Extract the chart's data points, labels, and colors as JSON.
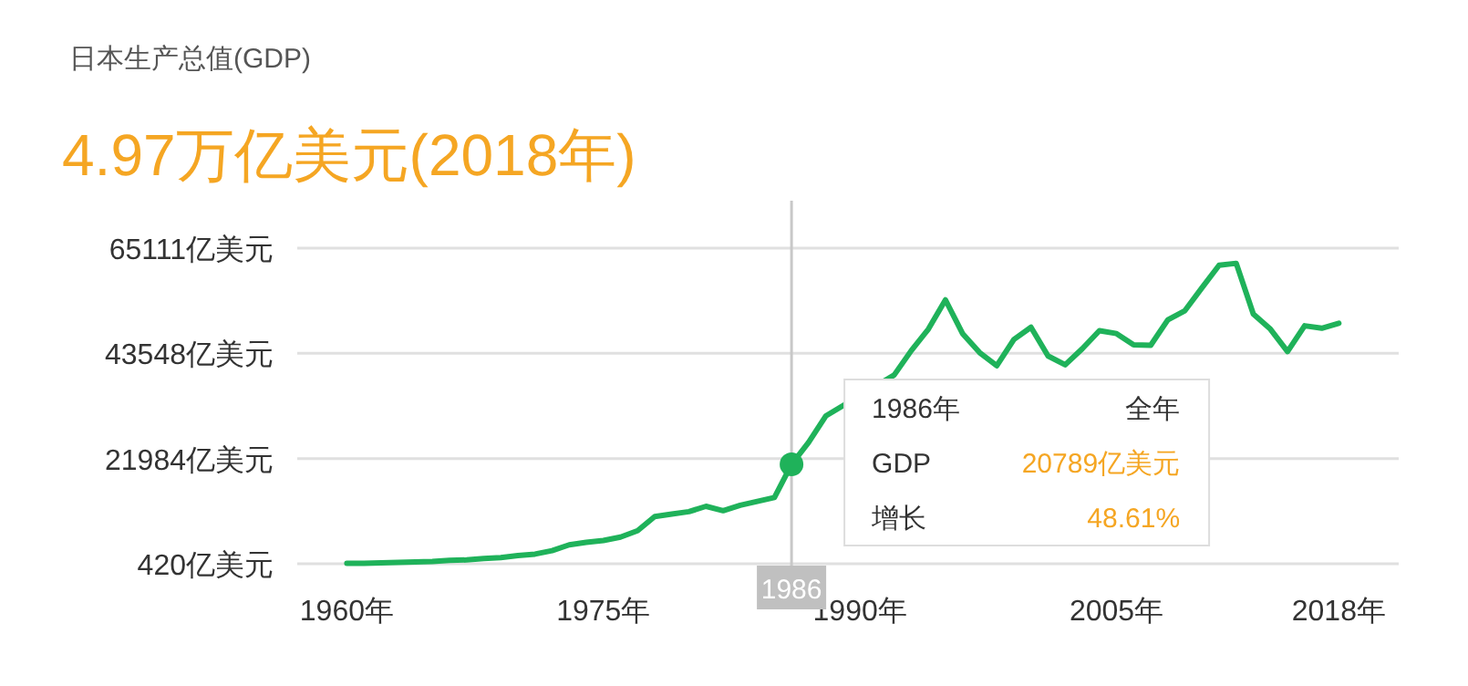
{
  "chart_data": {
    "type": "line",
    "title": "日本生产总值(GDP)",
    "subtitle": "4.97万亿美元(2018年)",
    "x": [
      1960,
      1961,
      1962,
      1963,
      1964,
      1965,
      1966,
      1967,
      1968,
      1969,
      1970,
      1971,
      1972,
      1973,
      1974,
      1975,
      1976,
      1977,
      1978,
      1979,
      1980,
      1981,
      1982,
      1983,
      1984,
      1985,
      1986,
      1987,
      1988,
      1992,
      1993,
      1994,
      1995,
      1996,
      1997,
      1998,
      1999,
      2000,
      2001,
      2002,
      2003,
      2004,
      2005,
      2006,
      2007,
      2008,
      2009,
      2010,
      2011,
      2012,
      2013,
      2014,
      2015,
      2016,
      2017,
      2018
    ],
    "series": [
      {
        "color": "#1fb25a",
        "values": [
          500,
          500,
          600,
          700,
          800,
          900,
          1100,
          1200,
          1500,
          1700,
          2100,
          2400,
          3100,
          4300,
          4800,
          5200,
          5900,
          7200,
          10100,
          10600,
          11100,
          12200,
          11300,
          12400,
          13200,
          14000,
          20789,
          25300,
          30700,
          39100,
          44100,
          48500,
          54500,
          47600,
          43700,
          41000,
          46400,
          48900,
          43000,
          41200,
          44500,
          48200,
          47600,
          45300,
          45200,
          50400,
          52300,
          57000,
          61600,
          62000,
          51600,
          48500,
          43900,
          49200,
          48700,
          49700
        ]
      }
    ],
    "xlim": [
      1957.1,
      2021.5
    ],
    "xticks": [
      {
        "value": 1960,
        "label": "1960年"
      },
      {
        "value": 1975,
        "label": "1975年"
      },
      {
        "value": 1990,
        "label": "1990年"
      },
      {
        "value": 2005,
        "label": "2005年"
      },
      {
        "value": 2018,
        "label": "2018年"
      }
    ],
    "ylim": [
      420,
      65111
    ],
    "yticks": [
      {
        "value": 420,
        "label": "420亿美元"
      },
      {
        "value": 21984,
        "label": "21984亿美元"
      },
      {
        "value": 43548,
        "label": "43548亿美元"
      },
      {
        "value": 65111,
        "label": "65111亿美元"
      }
    ],
    "grid": "y",
    "marker": "none",
    "line_style": "solid",
    "ref_lines": [
      {
        "axis": "x",
        "value": 1986,
        "label": "1986",
        "color": "#c8c8c8"
      }
    ],
    "annotations": [
      "1986年",
      "全年",
      "GDP",
      "20789亿美元",
      "增长",
      "48.61%"
    ]
  }
}
